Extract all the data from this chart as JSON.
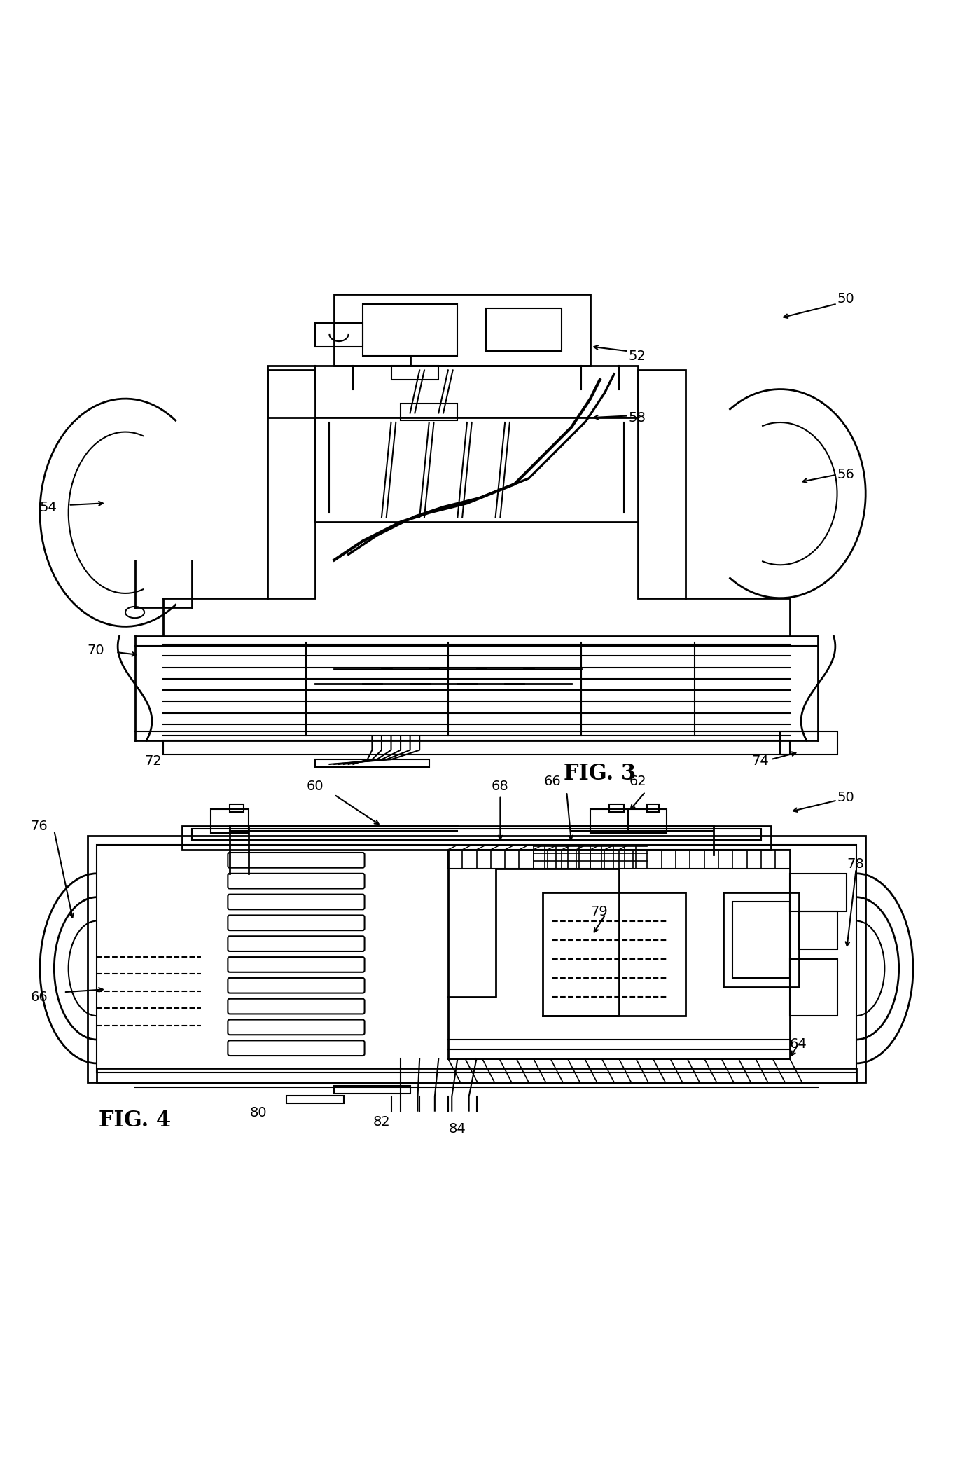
{
  "fig3_title": "FIG. 3",
  "fig4_title": "FIG. 4",
  "bg_color": "#ffffff",
  "line_color": "#000000",
  "fig_width": 13.61,
  "fig_height": 20.87
}
